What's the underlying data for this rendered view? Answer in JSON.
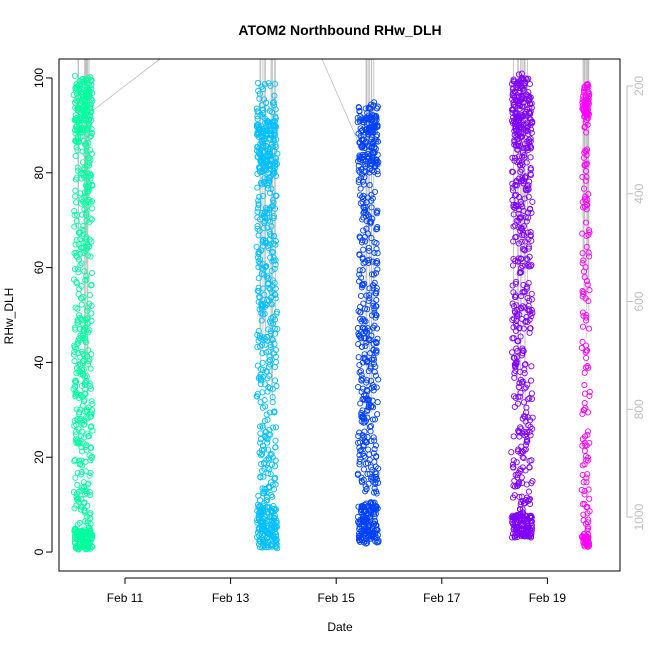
{
  "chart_data": {
    "type": "scatter",
    "title": "ATOM2 Northbound RHw_DLH",
    "xlabel": "Date",
    "ylabel": "RHw_DLH",
    "xlim": [
      "2014-02-09T18:00",
      "2014-02-20T09:00"
    ],
    "ylim": [
      -4,
      104
    ],
    "x_ticks": [
      {
        "label": "Feb 11",
        "value": "2014-02-11"
      },
      {
        "label": "Feb 13",
        "value": "2014-02-13"
      },
      {
        "label": "Feb 15",
        "value": "2014-02-15"
      },
      {
        "label": "Feb 17",
        "value": "2014-02-17"
      },
      {
        "label": "Feb 19",
        "value": "2014-02-19"
      }
    ],
    "y_ticks": [
      0,
      20,
      40,
      60,
      80,
      100
    ],
    "y2_ticks": [
      200,
      400,
      600,
      800,
      1000
    ],
    "y2_range": [
      1100,
      150
    ],
    "y2_color": "#bebebe",
    "overlay_color": "#bebebe",
    "series": [
      {
        "color": "#00ff9f",
        "start": "2014-02-10T01:00",
        "end": "2014-02-10T09:00",
        "ymin": 0.5,
        "ymax": 100.5,
        "low_cluster": [
          0.5,
          5
        ],
        "high_cluster": [
          88,
          100
        ]
      },
      {
        "color": "#00bfff",
        "start": "2014-02-13T12:00",
        "end": "2014-02-13T21:00",
        "ymin": 0.5,
        "ymax": 99,
        "low_cluster": [
          1,
          10
        ],
        "high_cluster": [
          80,
          91
        ]
      },
      {
        "color": "#0040ff",
        "start": "2014-02-15T10:00",
        "end": "2014-02-15T19:00",
        "ymin": 1.5,
        "ymax": 95,
        "low_cluster": [
          2,
          10
        ],
        "high_cluster": [
          80,
          92
        ]
      },
      {
        "color": "#7f00ff",
        "start": "2014-02-18T08:00",
        "end": "2014-02-18T17:00",
        "ymin": 3,
        "ymax": 101,
        "low_cluster": [
          3,
          8
        ],
        "high_cluster": [
          85,
          100
        ]
      },
      {
        "color": "#ff00ff",
        "start": "2014-02-19T16:00",
        "end": "2014-02-19T19:00",
        "ymin": 1,
        "ymax": 99,
        "low_cluster": [
          1,
          4
        ],
        "high_cluster": [
          90,
          99
        ]
      }
    ]
  }
}
